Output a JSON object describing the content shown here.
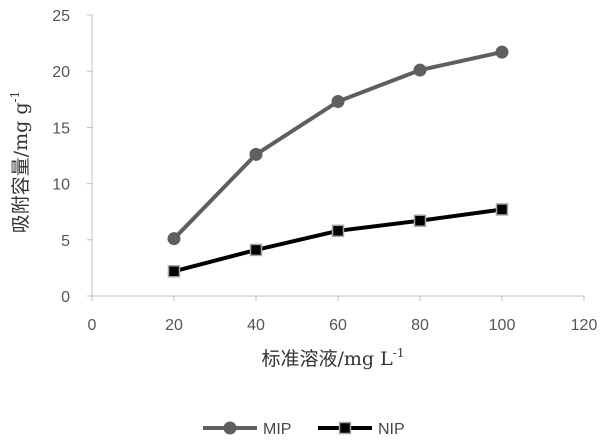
{
  "chart_data": {
    "type": "line",
    "x": [
      20,
      40,
      60,
      80,
      100
    ],
    "series": [
      {
        "name": "MIP",
        "values": [
          5.1,
          12.6,
          17.3,
          20.1,
          21.7
        ],
        "color": "#5f5f5f",
        "marker": "circle"
      },
      {
        "name": "NIP",
        "values": [
          2.2,
          4.1,
          5.8,
          6.7,
          7.7
        ],
        "color": "#000000",
        "marker": "square"
      }
    ],
    "xlabel": {
      "text": "标准溶液/mg L",
      "sup": "-1"
    },
    "ylabel": {
      "text": "吸附容量/mg g",
      "sup": "-1"
    },
    "xlim": [
      0,
      120
    ],
    "ylim": [
      0,
      25
    ],
    "xticks": [
      "0",
      "20",
      "40",
      "60",
      "80",
      "100",
      "120"
    ],
    "yticks": [
      "0",
      "5",
      "10",
      "15",
      "20",
      "25"
    ],
    "grid": false,
    "legend_position": "bottom"
  }
}
